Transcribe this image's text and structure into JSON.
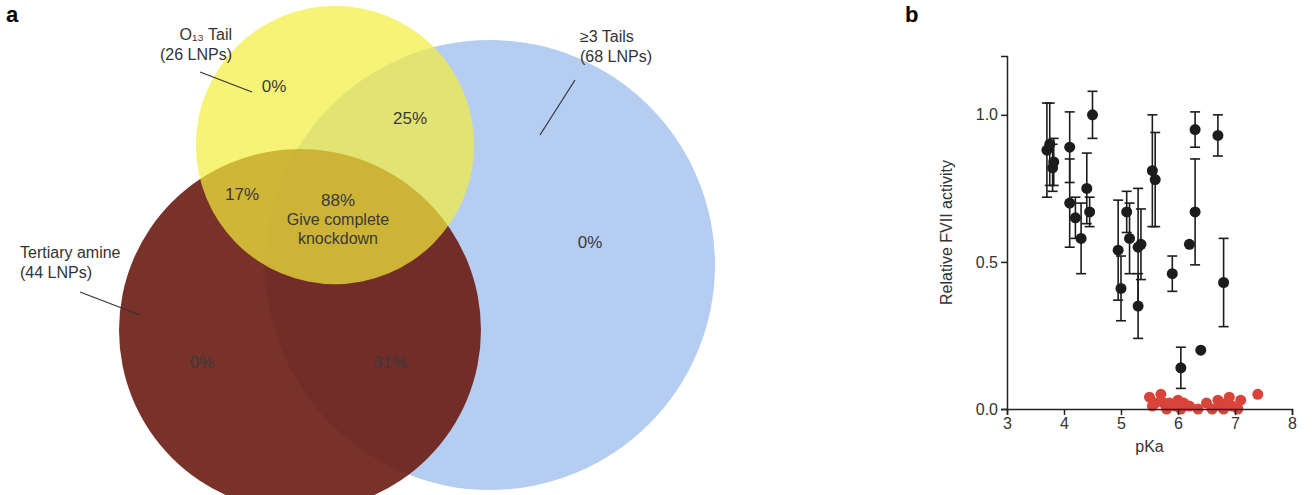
{
  "chart_data": [
    {
      "type": "venn",
      "label": "a",
      "sets": [
        {
          "name": "O₁₃ Tail",
          "size": 26,
          "size_label": "(26 LNPs)",
          "color": "#f4ee3c"
        },
        {
          "name": "≥3 Tails",
          "size": 68,
          "size_label": "(68 LNPs)",
          "color": "#a8c4ee"
        },
        {
          "name": "Tertiary amine",
          "size": 44,
          "size_label": "(44 LNPs)",
          "color": "#6a1c12"
        }
      ],
      "regions": [
        {
          "sets": [
            "O₁₃ Tail"
          ],
          "value": 0,
          "label": "0%"
        },
        {
          "sets": [
            "O₁₃ Tail",
            "≥3 Tails"
          ],
          "value": 25,
          "label": "25%"
        },
        {
          "sets": [
            "O₁₃ Tail",
            "Tertiary amine"
          ],
          "value": 17,
          "label": "17%"
        },
        {
          "sets": [
            "O₁₃ Tail",
            "≥3 Tails",
            "Tertiary amine"
          ],
          "value": 88,
          "label": "88%",
          "note": [
            "Give complete",
            "knockdown"
          ]
        },
        {
          "sets": [
            "Tertiary amine"
          ],
          "value": 0,
          "label": "0%"
        },
        {
          "sets": [
            "≥3 Tails",
            "Tertiary amine"
          ],
          "value": 31,
          "label": "31%"
        },
        {
          "sets": [
            "≥3 Tails"
          ],
          "value": 0,
          "label": "0%"
        }
      ]
    },
    {
      "type": "scatter",
      "label": "b",
      "x_label": "pKa",
      "y_label": "Relative FVII activity",
      "xlim": [
        3,
        8
      ],
      "xticks": [
        3,
        4,
        5,
        6,
        7,
        8
      ],
      "ylim": [
        0,
        1.2
      ],
      "yticks": [
        {
          "value": 0,
          "label": "0.0"
        },
        {
          "value": 0.5,
          "label": "0.5"
        },
        {
          "value": 1,
          "label": "1.0"
        }
      ],
      "grid": false,
      "series": [
        {
          "color": "#1c1c1c",
          "marker": "circle",
          "x": [
            3.7,
            3.75,
            3.8,
            3.82,
            4.1,
            4.1,
            4.2,
            4.3,
            4.4,
            4.45,
            4.5,
            4.95,
            5.0,
            5.1,
            5.15,
            5.3,
            5.3,
            5.35,
            5.55,
            5.6,
            5.9,
            6.05,
            6.2,
            6.3,
            6.3,
            6.4,
            6.7,
            6.8
          ],
          "values": [
            0.88,
            0.9,
            0.82,
            0.84,
            0.89,
            0.7,
            0.65,
            0.58,
            0.75,
            0.67,
            1.0,
            0.54,
            0.41,
            0.67,
            0.58,
            0.35,
            0.55,
            0.56,
            0.81,
            0.78,
            0.46,
            0.14,
            0.56,
            0.95,
            0.67,
            0.2,
            0.93,
            0.43
          ],
          "errors": [
            0.16,
            0.14,
            0.08,
            0.08,
            0.12,
            0.15,
            0.07,
            0.12,
            0.12,
            0.05,
            0.08,
            0.17,
            0.11,
            0.07,
            0.12,
            0.11,
            0.2,
            0.12,
            0.19,
            0.16,
            0.06,
            0.07,
            null,
            0.06,
            0.18,
            null,
            0.07,
            0.15
          ]
        },
        {
          "color": "#d9443a",
          "marker": "circle",
          "x": [
            5.5,
            5.55,
            5.6,
            5.7,
            5.75,
            5.8,
            5.85,
            5.95,
            6.0,
            6.05,
            6.1,
            6.2,
            6.35,
            6.5,
            6.6,
            6.7,
            6.75,
            6.8,
            6.85,
            6.9,
            6.95,
            7.05,
            7.1,
            7.4
          ],
          "values": [
            0.04,
            0.01,
            0.02,
            0.05,
            0.02,
            0.0,
            0.02,
            0.01,
            0.03,
            0.0,
            0.02,
            0.01,
            0.0,
            0.02,
            0.0,
            0.03,
            0.01,
            0.0,
            0.02,
            0.04,
            0.01,
            0.0,
            0.03,
            0.05
          ]
        }
      ]
    }
  ]
}
